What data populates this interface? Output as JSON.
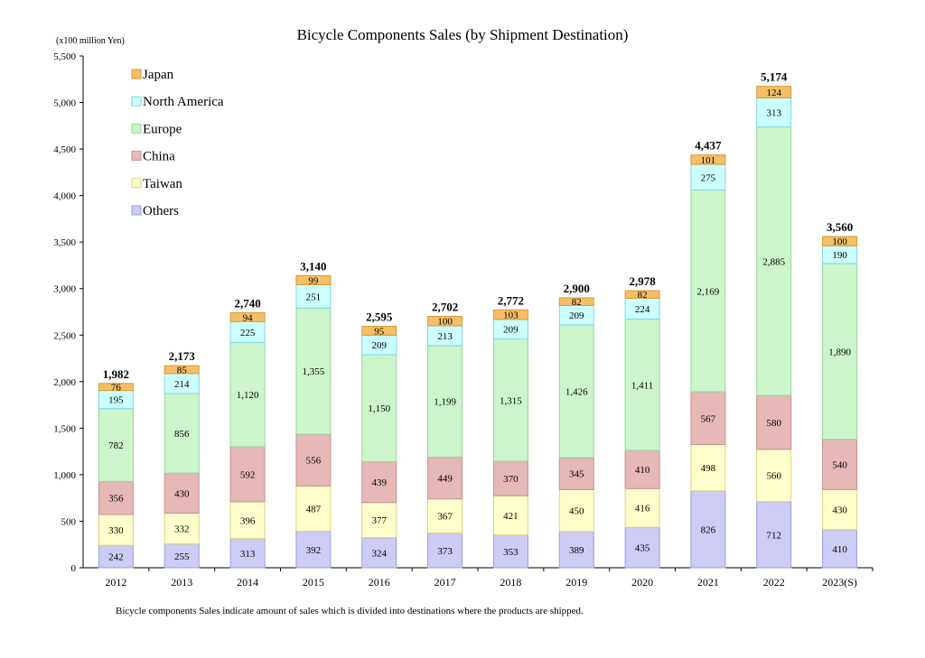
{
  "chart_data": {
    "type": "bar",
    "stacked": true,
    "title": "Bicycle Components Sales (by Shipment Destination)",
    "unit_label": "(x100 million Yen)",
    "footnote": "Bicycle components Sales indicate amount of sales which is divided into destinations where the products are shipped.",
    "categories": [
      "2012",
      "2013",
      "2014",
      "2015",
      "2016",
      "2017",
      "2018",
      "2019",
      "2020",
      "2021",
      "2022",
      "2023(S)"
    ],
    "totals": [
      "1,982",
      "2,173",
      "2,740",
      "3,140",
      "2,595",
      "2,702",
      "2,772",
      "2,900",
      "2,978",
      "4,437",
      "5,174",
      "3,560"
    ],
    "ylim": [
      0,
      5500
    ],
    "yticks": [
      "0",
      "500",
      "1,000",
      "1,500",
      "2,000",
      "2,500",
      "3,000",
      "3,500",
      "4,000",
      "4,500",
      "5,000",
      "5,500"
    ],
    "grid": false,
    "legend_position": "top-left",
    "series": [
      {
        "name": "Others",
        "color": "#ccccf5",
        "stroke": "#9c9ce6",
        "values": [
          242,
          255,
          313,
          392,
          324,
          373,
          353,
          389,
          435,
          826,
          712,
          410
        ]
      },
      {
        "name": "Taiwan",
        "color": "#ffffcc",
        "stroke": "#ddd27a",
        "values": [
          330,
          332,
          396,
          487,
          377,
          367,
          421,
          450,
          416,
          498,
          560,
          430
        ]
      },
      {
        "name": "China",
        "color": "#e6b8b8",
        "stroke": "#c98f8f",
        "values": [
          356,
          430,
          592,
          556,
          439,
          449,
          370,
          345,
          410,
          567,
          580,
          540
        ]
      },
      {
        "name": "Europe",
        "color": "#ccf5cc",
        "stroke": "#94d994",
        "values": [
          782,
          856,
          1120,
          1355,
          1150,
          1199,
          1315,
          1426,
          1411,
          2169,
          2885,
          1890
        ]
      },
      {
        "name": "North America",
        "color": "#ccffff",
        "stroke": "#7fd6e6",
        "values": [
          195,
          214,
          225,
          251,
          209,
          213,
          209,
          209,
          224,
          275,
          313,
          190
        ]
      },
      {
        "name": "Japan",
        "color": "#f5bf66",
        "stroke": "#d99a33",
        "values": [
          76,
          85,
          94,
          99,
          95,
          100,
          103,
          82,
          82,
          101,
          124,
          100
        ]
      }
    ],
    "legend_order": [
      "Japan",
      "North America",
      "Europe",
      "China",
      "Taiwan",
      "Others"
    ]
  }
}
